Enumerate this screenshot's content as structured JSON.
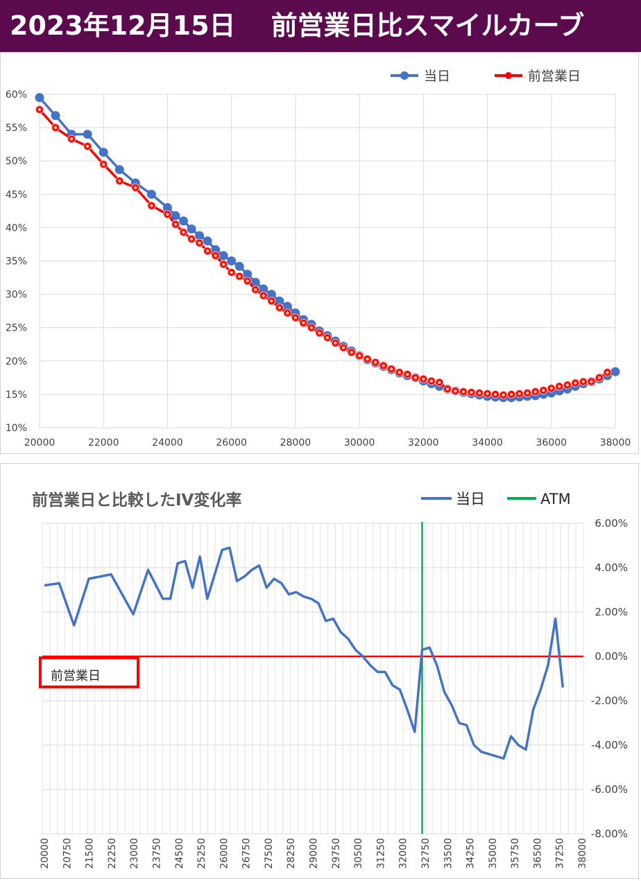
{
  "header": {
    "title": "2023年12月15日　 前営業日比スマイルカーブ"
  },
  "colors": {
    "title_bg": "#5c0a4e",
    "today": "#4472c4",
    "prev": "#ff0000",
    "atm": "#00b050"
  },
  "chart_data": [
    {
      "type": "line",
      "title": "",
      "xlim": [
        20000,
        38000
      ],
      "ylim": [
        0.1,
        0.6
      ],
      "x_ticks": [
        "20000",
        "22000",
        "24000",
        "26000",
        "28000",
        "30000",
        "32000",
        "34000",
        "36000",
        "38000"
      ],
      "y_ticks": [
        "10%",
        "15%",
        "20%",
        "25%",
        "30%",
        "35%",
        "40%",
        "45%",
        "50%",
        "55%",
        "60%"
      ],
      "legend_position": "top-right",
      "grid": true,
      "series": [
        {
          "name": "当日",
          "color": "#4472c4",
          "x": [
            20000,
            20500,
            21000,
            21500,
            22000,
            22500,
            23000,
            23500,
            24000,
            24250,
            24500,
            24750,
            25000,
            25250,
            25500,
            25750,
            26000,
            26250,
            26500,
            26750,
            27000,
            27250,
            27500,
            27750,
            28000,
            28250,
            28500,
            28750,
            29000,
            29250,
            29500,
            29750,
            30000,
            30250,
            30500,
            30750,
            31000,
            31250,
            31500,
            31750,
            32000,
            32250,
            32500,
            32750,
            33000,
            33250,
            33500,
            33750,
            34000,
            34250,
            34500,
            34750,
            35000,
            35250,
            35500,
            35750,
            36000,
            36250,
            36500,
            36750,
            37000,
            37250,
            37500,
            37750,
            38000
          ],
          "y": [
            0.595,
            0.568,
            0.54,
            0.54,
            0.513,
            0.487,
            0.467,
            0.45,
            0.43,
            0.418,
            0.41,
            0.398,
            0.388,
            0.38,
            0.367,
            0.358,
            0.35,
            0.342,
            0.33,
            0.318,
            0.308,
            0.3,
            0.29,
            0.282,
            0.272,
            0.262,
            0.255,
            0.245,
            0.238,
            0.23,
            0.222,
            0.215,
            0.208,
            0.202,
            0.197,
            0.192,
            0.187,
            0.182,
            0.178,
            0.175,
            0.17,
            0.166,
            0.162,
            0.158,
            0.155,
            0.153,
            0.151,
            0.149,
            0.147,
            0.146,
            0.145,
            0.145,
            0.146,
            0.147,
            0.148,
            0.15,
            0.152,
            0.155,
            0.158,
            0.162,
            0.166,
            0.169,
            0.173,
            0.178,
            0.184
          ]
        },
        {
          "name": "前営業日",
          "color": "#ff0000",
          "x": [
            20000,
            20500,
            21000,
            21500,
            22000,
            22500,
            23000,
            23500,
            24000,
            24250,
            24500,
            24750,
            25000,
            25250,
            25500,
            25750,
            26000,
            26250,
            26500,
            26750,
            27000,
            27250,
            27500,
            27750,
            28000,
            28250,
            28500,
            28750,
            29000,
            29250,
            29500,
            29750,
            30000,
            30250,
            30500,
            30750,
            31000,
            31250,
            31500,
            31750,
            32000,
            32250,
            32500,
            32750,
            33000,
            33250,
            33500,
            33750,
            34000,
            34250,
            34500,
            34750,
            35000,
            35250,
            35500,
            35750,
            36000,
            36250,
            36500,
            36750,
            37000,
            37250,
            37500,
            37750
          ],
          "y": [
            0.577,
            0.55,
            0.533,
            0.522,
            0.495,
            0.47,
            0.46,
            0.433,
            0.42,
            0.405,
            0.393,
            0.383,
            0.377,
            0.365,
            0.358,
            0.345,
            0.333,
            0.327,
            0.32,
            0.307,
            0.298,
            0.29,
            0.28,
            0.272,
            0.265,
            0.257,
            0.25,
            0.242,
            0.235,
            0.227,
            0.22,
            0.213,
            0.208,
            0.203,
            0.198,
            0.193,
            0.188,
            0.183,
            0.18,
            0.175,
            0.173,
            0.17,
            0.168,
            0.158,
            0.155,
            0.154,
            0.153,
            0.152,
            0.151,
            0.15,
            0.149,
            0.15,
            0.151,
            0.152,
            0.154,
            0.156,
            0.159,
            0.162,
            0.164,
            0.167,
            0.169,
            0.169,
            0.175,
            0.183
          ]
        }
      ]
    },
    {
      "type": "line",
      "title": "前営業日と比較したIV変化率",
      "xlim": [
        20000,
        37750
      ],
      "ylim": [
        -0.08,
        0.06
      ],
      "y_ticks": [
        "6.00%",
        "4.00%",
        "2.00%",
        "0.00%",
        "-2.00%",
        "-4.00%",
        "-6.00%",
        "-8.00%"
      ],
      "x_ticks": [
        "20000",
        "20750",
        "21500",
        "22250",
        "23000",
        "23750",
        "24500",
        "25250",
        "26000",
        "26750",
        "27500",
        "28250",
        "29000",
        "29750",
        "30500",
        "31250",
        "32000",
        "32750",
        "33500",
        "34250",
        "35000",
        "35750",
        "36500",
        "37250",
        "38000"
      ],
      "legend_position": "top-right",
      "baseline_label": "前営業日",
      "atm": 32750,
      "series": [
        {
          "name": "当日",
          "color": "#4472c4",
          "x": [
            20000,
            20500,
            21000,
            21500,
            22250,
            23000,
            23500,
            24000,
            24250,
            24500,
            24750,
            25000,
            25250,
            25500,
            26000,
            26250,
            26500,
            26750,
            27000,
            27250,
            27500,
            27750,
            28000,
            28250,
            28500,
            28750,
            29000,
            29250,
            29500,
            29750,
            30000,
            30250,
            30500,
            30750,
            31000,
            31250,
            31500,
            31750,
            32000,
            32250,
            32500,
            32750,
            33000,
            33250,
            33500,
            33750,
            34000,
            34250,
            34500,
            34750,
            35000,
            35250,
            35500,
            35750,
            36000,
            36250,
            36500,
            36750,
            37000,
            37250,
            37500
          ],
          "y": [
            0.032,
            0.033,
            0.014,
            0.035,
            0.037,
            0.019,
            0.039,
            0.026,
            0.026,
            0.042,
            0.043,
            0.031,
            0.045,
            0.026,
            0.048,
            0.049,
            0.034,
            0.036,
            0.039,
            0.041,
            0.031,
            0.035,
            0.033,
            0.028,
            0.029,
            0.027,
            0.026,
            0.024,
            0.016,
            0.017,
            0.011,
            0.008,
            0.003,
            0.0,
            -0.004,
            -0.007,
            -0.007,
            -0.013,
            -0.015,
            -0.024,
            -0.034,
            0.003,
            0.004,
            -0.004,
            -0.016,
            -0.022,
            -0.03,
            -0.031,
            -0.04,
            -0.043,
            -0.044,
            -0.045,
            -0.046,
            -0.036,
            -0.04,
            -0.042,
            -0.024,
            -0.015,
            -0.004,
            0.017,
            -0.014
          ]
        },
        {
          "name": "ATM",
          "color": "#00b050"
        }
      ]
    }
  ]
}
